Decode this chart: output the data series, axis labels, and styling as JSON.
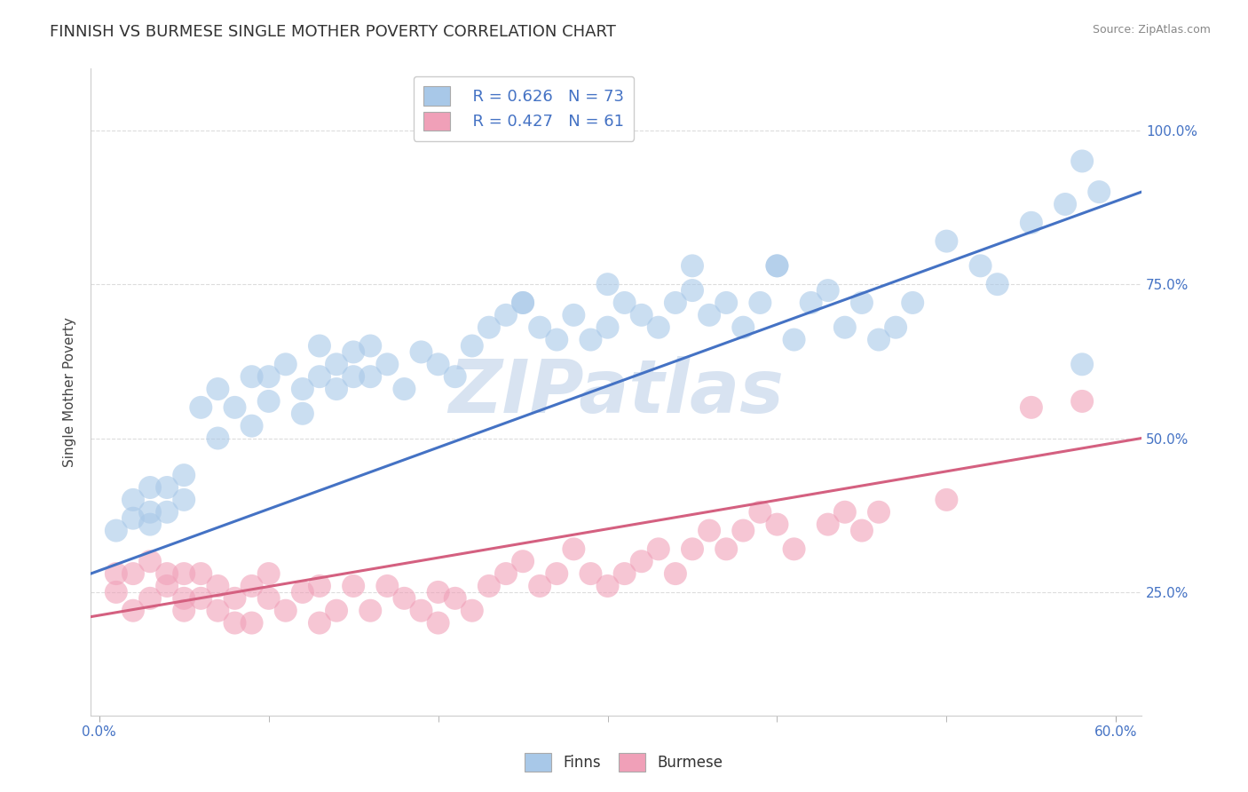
{
  "title": "FINNISH VS BURMESE SINGLE MOTHER POVERTY CORRELATION CHART",
  "source_text": "Source: ZipAtlas.com",
  "ylabel": "Single Mother Poverty",
  "xlim": [
    -0.005,
    0.615
  ],
  "ylim": [
    0.05,
    1.1
  ],
  "xtick_show": [
    0.0,
    0.6
  ],
  "xtick_labels_show": [
    "0.0%",
    "60.0%"
  ],
  "xtick_minor": [
    0.1,
    0.2,
    0.3,
    0.4,
    0.5
  ],
  "ytick_values": [
    0.25,
    0.5,
    0.75,
    1.0
  ],
  "ytick_labels": [
    "25.0%",
    "50.0%",
    "75.0%",
    "100.0%"
  ],
  "legend_finn_r": "R = 0.626",
  "legend_finn_n": "N = 73",
  "legend_burm_r": "R = 0.427",
  "legend_burm_n": "N = 61",
  "finn_color": "#A8C8E8",
  "burm_color": "#F0A0B8",
  "finn_line_color": "#4472C4",
  "burm_line_color": "#D46080",
  "watermark_text": "ZIPatlas",
  "watermark_color": "#C8D8EC",
  "finn_scatter_x": [
    0.01,
    0.02,
    0.02,
    0.03,
    0.03,
    0.03,
    0.04,
    0.04,
    0.05,
    0.05,
    0.06,
    0.07,
    0.07,
    0.08,
    0.09,
    0.09,
    0.1,
    0.1,
    0.11,
    0.12,
    0.12,
    0.13,
    0.13,
    0.14,
    0.14,
    0.15,
    0.15,
    0.16,
    0.16,
    0.17,
    0.18,
    0.19,
    0.2,
    0.21,
    0.22,
    0.23,
    0.24,
    0.25,
    0.26,
    0.27,
    0.28,
    0.29,
    0.3,
    0.31,
    0.32,
    0.33,
    0.34,
    0.35,
    0.36,
    0.37,
    0.38,
    0.39,
    0.4,
    0.41,
    0.42,
    0.43,
    0.44,
    0.45,
    0.46,
    0.47,
    0.48,
    0.5,
    0.52,
    0.53,
    0.55,
    0.57,
    0.58,
    0.25,
    0.3,
    0.35,
    0.4,
    0.58,
    0.59
  ],
  "finn_scatter_y": [
    0.35,
    0.37,
    0.4,
    0.38,
    0.42,
    0.36,
    0.42,
    0.38,
    0.4,
    0.44,
    0.55,
    0.58,
    0.5,
    0.55,
    0.6,
    0.52,
    0.56,
    0.6,
    0.62,
    0.58,
    0.54,
    0.6,
    0.65,
    0.62,
    0.58,
    0.6,
    0.64,
    0.65,
    0.6,
    0.62,
    0.58,
    0.64,
    0.62,
    0.6,
    0.65,
    0.68,
    0.7,
    0.72,
    0.68,
    0.66,
    0.7,
    0.66,
    0.68,
    0.72,
    0.7,
    0.68,
    0.72,
    0.74,
    0.7,
    0.72,
    0.68,
    0.72,
    0.78,
    0.66,
    0.72,
    0.74,
    0.68,
    0.72,
    0.66,
    0.68,
    0.72,
    0.82,
    0.78,
    0.75,
    0.85,
    0.88,
    0.62,
    0.72,
    0.75,
    0.78,
    0.78,
    0.95,
    0.9
  ],
  "burm_scatter_x": [
    0.01,
    0.01,
    0.02,
    0.02,
    0.03,
    0.03,
    0.04,
    0.04,
    0.05,
    0.05,
    0.05,
    0.06,
    0.06,
    0.07,
    0.07,
    0.08,
    0.08,
    0.09,
    0.09,
    0.1,
    0.1,
    0.11,
    0.12,
    0.13,
    0.13,
    0.14,
    0.15,
    0.16,
    0.17,
    0.18,
    0.19,
    0.2,
    0.2,
    0.21,
    0.22,
    0.23,
    0.24,
    0.25,
    0.26,
    0.27,
    0.28,
    0.29,
    0.3,
    0.31,
    0.32,
    0.33,
    0.34,
    0.35,
    0.36,
    0.37,
    0.38,
    0.39,
    0.4,
    0.41,
    0.43,
    0.44,
    0.45,
    0.46,
    0.5,
    0.55,
    0.58
  ],
  "burm_scatter_y": [
    0.25,
    0.28,
    0.22,
    0.28,
    0.24,
    0.3,
    0.26,
    0.28,
    0.24,
    0.28,
    0.22,
    0.24,
    0.28,
    0.26,
    0.22,
    0.2,
    0.24,
    0.2,
    0.26,
    0.24,
    0.28,
    0.22,
    0.25,
    0.26,
    0.2,
    0.22,
    0.26,
    0.22,
    0.26,
    0.24,
    0.22,
    0.25,
    0.2,
    0.24,
    0.22,
    0.26,
    0.28,
    0.3,
    0.26,
    0.28,
    0.32,
    0.28,
    0.26,
    0.28,
    0.3,
    0.32,
    0.28,
    0.32,
    0.35,
    0.32,
    0.35,
    0.38,
    0.36,
    0.32,
    0.36,
    0.38,
    0.35,
    0.38,
    0.4,
    0.55,
    0.56
  ],
  "finn_line_x": [
    -0.005,
    0.615
  ],
  "finn_line_y": [
    0.28,
    0.9
  ],
  "burm_line_x": [
    -0.005,
    0.615
  ],
  "burm_line_y": [
    0.21,
    0.5
  ],
  "title_fontsize": 13,
  "axis_label_fontsize": 11,
  "tick_fontsize": 11,
  "background_color": "#FFFFFF",
  "plot_bg_color": "#FFFFFF",
  "grid_color": "#DCDCDC"
}
